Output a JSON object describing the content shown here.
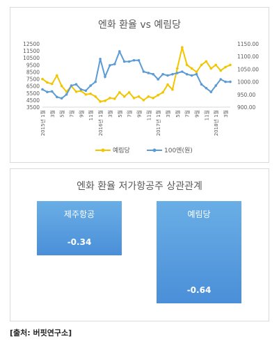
{
  "chart_data": [
    {
      "type": "line",
      "title": "엔화 환율 vs 예림당",
      "x_ticks": [
        "2015년 1월",
        "3월",
        "5월",
        "7월",
        "9월",
        "11월",
        "2016년 1월",
        "3월",
        "5월",
        "7월",
        "9월",
        "11월",
        "2017년 1월",
        "3월",
        "5월",
        "7월",
        "9월",
        "11월",
        "2018년 1월",
        "3월"
      ],
      "y_left": {
        "ticks": [
          "12500",
          "11500",
          "10500",
          "9500",
          "8500",
          "7500",
          "6500",
          "5500",
          "4500",
          "3500"
        ],
        "range": [
          3500,
          12500
        ]
      },
      "y_right": {
        "ticks": [
          "1150.00",
          "1100.00",
          "1050.00",
          "1000.00",
          "950.00",
          "900.00"
        ],
        "range": [
          900,
          1150
        ]
      },
      "legend_position": "bottom",
      "series": [
        {
          "name": "예림당",
          "axis": "left",
          "color": "#f2c500",
          "values": [
            7500,
            7000,
            6800,
            8000,
            6500,
            5700,
            6500,
            5700,
            5800,
            5300,
            5400,
            5000,
            4300,
            4400,
            4800,
            4700,
            5600,
            5000,
            5600,
            4800,
            5000,
            4500,
            5000,
            4800,
            5200,
            5600,
            6700,
            6000,
            9000,
            12000,
            9500,
            9000,
            8500,
            9500,
            10000,
            9000,
            9500,
            8700,
            9200,
            9500
          ]
        },
        {
          "name": "100엔(원)",
          "axis": "right",
          "color": "#5b9bd5",
          "values": [
            970,
            960,
            962,
            940,
            935,
            950,
            985,
            990,
            970,
            965,
            985,
            1000,
            1090,
            1020,
            1065,
            1070,
            1120,
            1080,
            1080,
            1085,
            1085,
            1040,
            1035,
            1030,
            1010,
            1030,
            1025,
            1030,
            1035,
            1040,
            1030,
            1025,
            1030,
            990,
            975,
            960,
            985,
            1010,
            1000,
            1000
          ]
        }
      ]
    },
    {
      "type": "bar",
      "title": "엔화 환율 저가항공주 상관관계",
      "categories": [
        "제주항공",
        "예림당"
      ],
      "values": [
        -0.34,
        -0.64
      ],
      "value_labels": [
        "-0.34",
        "-0.64"
      ]
    }
  ],
  "source": "[출처: 버핏연구소]"
}
